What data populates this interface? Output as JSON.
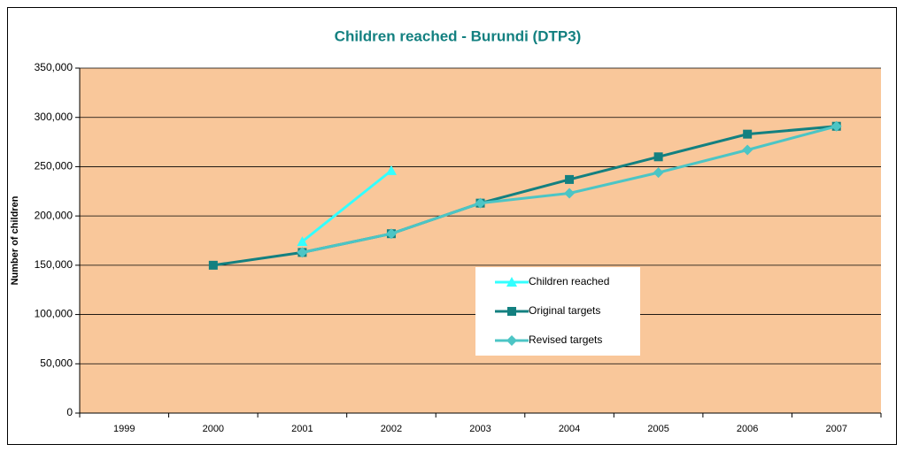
{
  "chart_data": {
    "type": "line",
    "title": "Children reached - Burundi (DTP3)",
    "y_label": "Number of children",
    "categories": [
      "1999",
      "2000",
      "2001",
      "2002",
      "2003",
      "2004",
      "2005",
      "2006",
      "2007"
    ],
    "series": [
      {
        "name": "Children reached",
        "color": "#33ffff",
        "marker": "triangle",
        "values": [
          null,
          null,
          174000,
          246000,
          null,
          null,
          null,
          null,
          null
        ]
      },
      {
        "name": "Original targets",
        "color": "#138080",
        "marker": "square",
        "values": [
          null,
          150000,
          163000,
          182000,
          213000,
          237000,
          260000,
          283000,
          291000
        ]
      },
      {
        "name": "Revised targets",
        "color": "#4cc5c5",
        "marker": "diamond",
        "values": [
          null,
          null,
          163000,
          182000,
          213000,
          223000,
          244000,
          267000,
          291000
        ]
      }
    ],
    "ylim": [
      0,
      350000
    ],
    "yticks": [
      {
        "value": 0,
        "label": "0"
      },
      {
        "value": 50000,
        "label": "50,000"
      },
      {
        "value": 100000,
        "label": "100,000"
      },
      {
        "value": 150000,
        "label": "150,000"
      },
      {
        "value": 200000,
        "label": "200,000"
      },
      {
        "value": 250000,
        "label": "250,000"
      },
      {
        "value": 300000,
        "label": "300,000"
      },
      {
        "value": 350000,
        "label": "350,000"
      }
    ],
    "grid": true,
    "plot_background": "#f9c79a",
    "title_color": "#138080"
  }
}
